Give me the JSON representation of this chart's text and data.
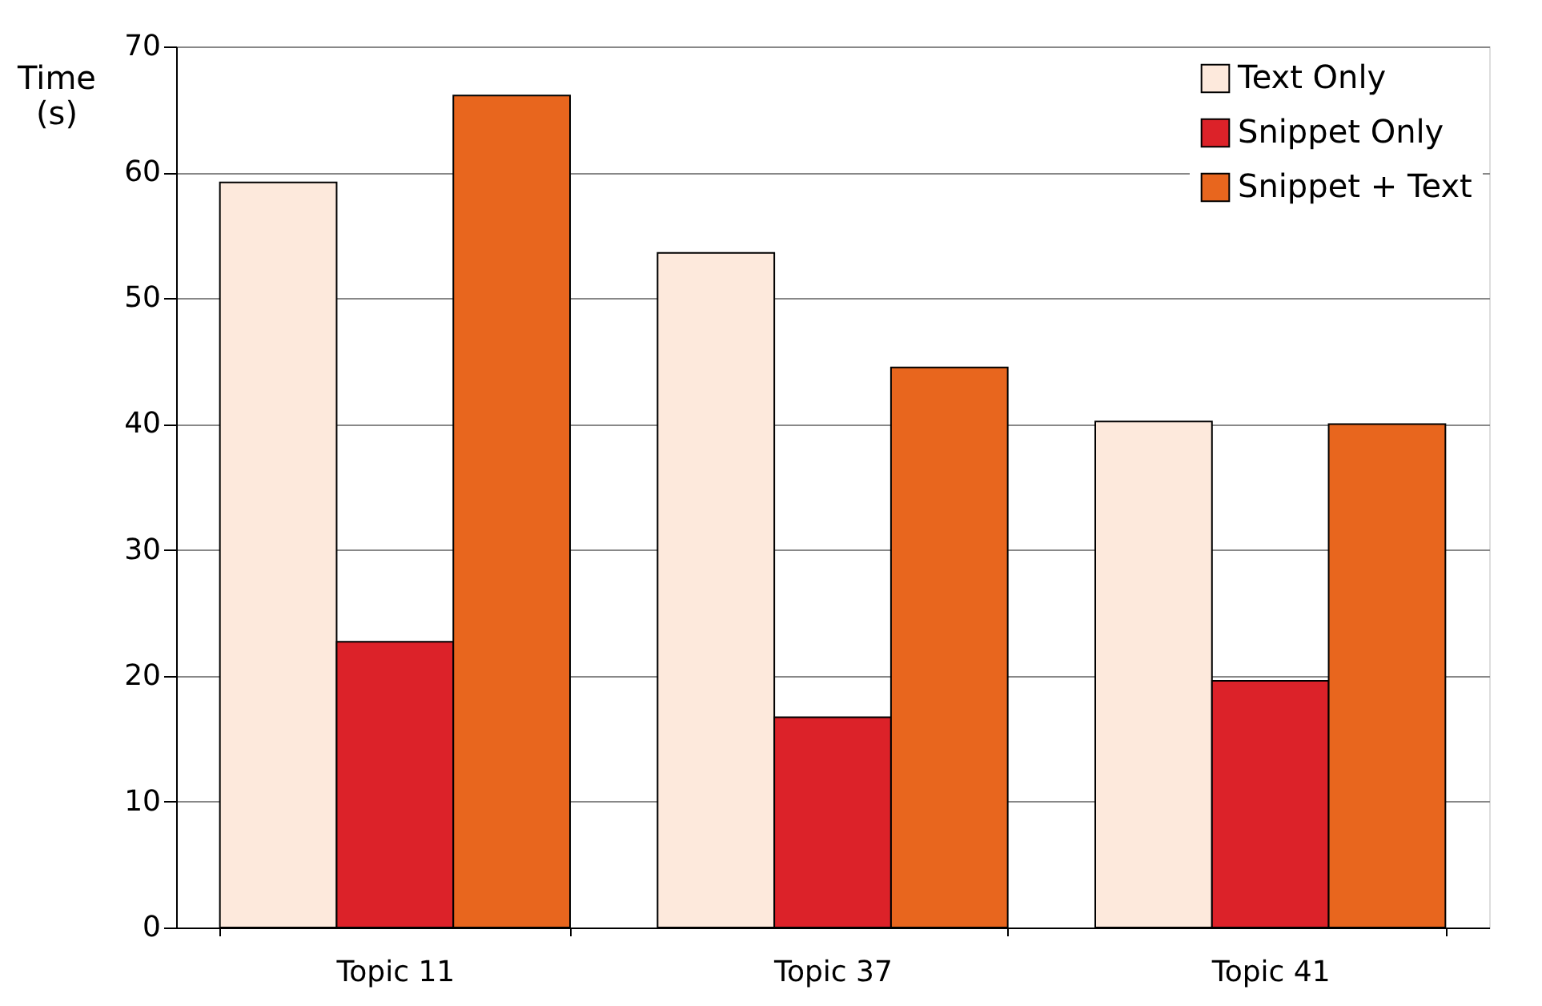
{
  "chart_data": {
    "type": "bar",
    "ylabel": "Time (s)",
    "categories": [
      "Topic 11",
      "Topic 37",
      "Topic 41"
    ],
    "series": [
      {
        "name": "Text Only",
        "color": "#fde9dc",
        "values": [
          59.2,
          53.6,
          40.2
        ]
      },
      {
        "name": "Snippet Only",
        "color": "#dc2229",
        "values": [
          22.7,
          16.7,
          19.6
        ]
      },
      {
        "name": "Snippet + Text",
        "color": "#e8661e",
        "values": [
          66.1,
          44.5,
          40.0
        ]
      }
    ],
    "ylim": [
      0,
      70
    ],
    "yticks": [
      0,
      10,
      20,
      30,
      40,
      50,
      60,
      70
    ],
    "grid": "y",
    "legend": "top right"
  }
}
